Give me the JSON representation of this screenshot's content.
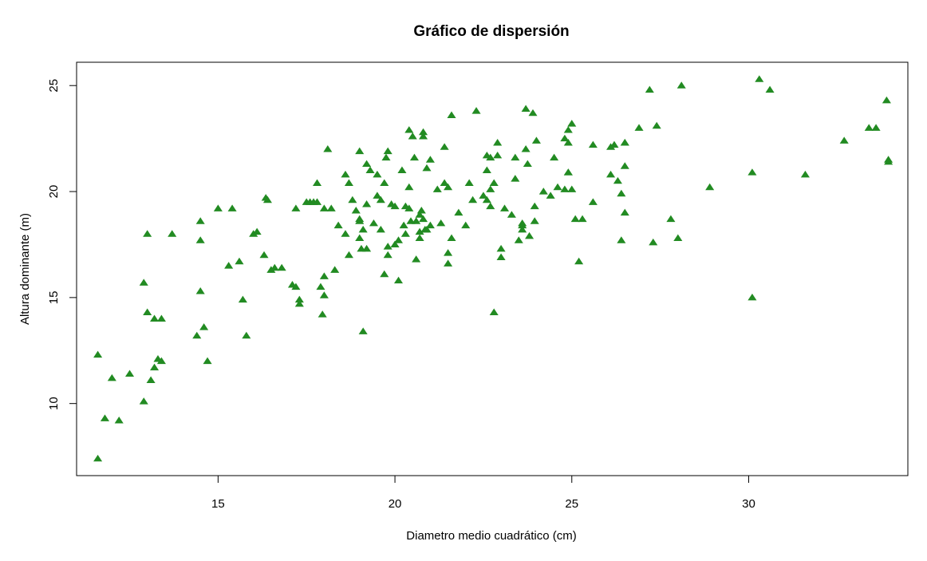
{
  "chart_data": {
    "type": "scatter",
    "title": "Gráfico de dispersión",
    "xlabel": "Diametro medio cuadrático (cm)",
    "ylabel": "Altura dominante (m)",
    "xlim": [
      11.0,
      34.5
    ],
    "ylim": [
      6.6,
      26.1
    ],
    "xticks": [
      15,
      20,
      25,
      30
    ],
    "yticks": [
      10,
      15,
      20,
      25
    ],
    "grid": false,
    "legend": "none",
    "marker": "filled-triangle",
    "color": "#228b22",
    "points": [
      [
        11.6,
        12.3
      ],
      [
        11.8,
        9.3
      ],
      [
        12.0,
        11.2
      ],
      [
        12.2,
        9.2
      ],
      [
        12.5,
        11.4
      ],
      [
        11.6,
        7.4
      ],
      [
        12.9,
        15.7
      ],
      [
        13.0,
        18.0
      ],
      [
        13.0,
        14.3
      ],
      [
        13.1,
        11.1
      ],
      [
        13.2,
        14.0
      ],
      [
        13.2,
        11.7
      ],
      [
        13.3,
        12.1
      ],
      [
        13.4,
        14.0
      ],
      [
        13.4,
        12.0
      ],
      [
        12.9,
        10.1
      ],
      [
        13.7,
        18.0
      ],
      [
        14.4,
        13.2
      ],
      [
        14.5,
        18.6
      ],
      [
        14.5,
        17.7
      ],
      [
        14.5,
        15.3
      ],
      [
        14.6,
        13.6
      ],
      [
        14.7,
        12.0
      ],
      [
        15.0,
        19.2
      ],
      [
        15.3,
        16.5
      ],
      [
        15.4,
        19.2
      ],
      [
        15.6,
        16.7
      ],
      [
        15.7,
        14.9
      ],
      [
        15.8,
        13.2
      ],
      [
        16.0,
        18.0
      ],
      [
        16.1,
        18.1
      ],
      [
        16.3,
        17.0
      ],
      [
        16.35,
        19.7
      ],
      [
        16.4,
        19.6
      ],
      [
        16.5,
        16.3
      ],
      [
        16.6,
        16.4
      ],
      [
        16.8,
        16.4
      ],
      [
        17.1,
        15.6
      ],
      [
        17.2,
        19.2
      ],
      [
        17.2,
        15.5
      ],
      [
        17.3,
        14.9
      ],
      [
        17.3,
        14.7
      ],
      [
        17.5,
        19.5
      ],
      [
        17.6,
        19.5
      ],
      [
        17.7,
        19.5
      ],
      [
        17.8,
        20.4
      ],
      [
        17.8,
        19.5
      ],
      [
        17.9,
        15.5
      ],
      [
        17.95,
        14.2
      ],
      [
        18.0,
        19.2
      ],
      [
        18.0,
        16.0
      ],
      [
        18.0,
        15.1
      ],
      [
        18.1,
        22.0
      ],
      [
        18.2,
        19.2
      ],
      [
        18.3,
        16.3
      ],
      [
        18.4,
        18.4
      ],
      [
        18.6,
        18.0
      ],
      [
        18.6,
        20.8
      ],
      [
        18.7,
        20.4
      ],
      [
        18.7,
        17.0
      ],
      [
        18.8,
        19.6
      ],
      [
        18.9,
        19.1
      ],
      [
        19.0,
        18.7
      ],
      [
        19.0,
        17.8
      ],
      [
        19.0,
        18.6
      ],
      [
        19.0,
        21.9
      ],
      [
        19.05,
        17.3
      ],
      [
        19.1,
        13.4
      ],
      [
        19.1,
        18.2
      ],
      [
        19.2,
        21.3
      ],
      [
        19.2,
        19.4
      ],
      [
        19.2,
        17.3
      ],
      [
        19.3,
        21.0
      ],
      [
        19.4,
        18.5
      ],
      [
        19.5,
        19.8
      ],
      [
        19.5,
        20.8
      ],
      [
        19.6,
        19.6
      ],
      [
        19.6,
        18.2
      ],
      [
        19.7,
        16.1
      ],
      [
        19.7,
        20.4
      ],
      [
        19.75,
        21.6
      ],
      [
        19.8,
        21.9
      ],
      [
        19.8,
        17.4
      ],
      [
        19.8,
        17.0
      ],
      [
        19.9,
        19.4
      ],
      [
        20.0,
        17.5
      ],
      [
        20.0,
        19.3
      ],
      [
        20.1,
        17.7
      ],
      [
        20.1,
        15.8
      ],
      [
        20.2,
        21.0
      ],
      [
        20.25,
        18.4
      ],
      [
        20.3,
        19.3
      ],
      [
        20.3,
        18.0
      ],
      [
        20.4,
        19.2
      ],
      [
        20.4,
        20.2
      ],
      [
        20.4,
        22.9
      ],
      [
        20.45,
        18.6
      ],
      [
        20.5,
        22.6
      ],
      [
        20.55,
        21.6
      ],
      [
        20.6,
        16.8
      ],
      [
        20.6,
        18.6
      ],
      [
        20.7,
        18.1
      ],
      [
        20.7,
        17.8
      ],
      [
        20.7,
        18.9
      ],
      [
        20.75,
        19.1
      ],
      [
        20.8,
        22.8
      ],
      [
        20.8,
        22.6
      ],
      [
        20.8,
        18.7
      ],
      [
        20.85,
        18.2
      ],
      [
        20.9,
        21.1
      ],
      [
        20.9,
        18.2
      ],
      [
        21.0,
        21.5
      ],
      [
        21.0,
        18.4
      ],
      [
        21.2,
        20.1
      ],
      [
        21.3,
        18.5
      ],
      [
        21.4,
        20.4
      ],
      [
        21.4,
        22.1
      ],
      [
        21.5,
        20.2
      ],
      [
        21.5,
        17.1
      ],
      [
        21.5,
        16.6
      ],
      [
        21.6,
        23.6
      ],
      [
        21.6,
        17.8
      ],
      [
        21.8,
        19.0
      ],
      [
        22.0,
        18.4
      ],
      [
        22.1,
        20.4
      ],
      [
        22.2,
        19.6
      ],
      [
        22.3,
        23.8
      ],
      [
        22.5,
        19.8
      ],
      [
        22.6,
        21.7
      ],
      [
        22.6,
        21.0
      ],
      [
        22.6,
        19.6
      ],
      [
        22.7,
        20.1
      ],
      [
        22.7,
        19.3
      ],
      [
        22.7,
        21.6
      ],
      [
        22.8,
        20.4
      ],
      [
        22.8,
        14.3
      ],
      [
        22.9,
        21.7
      ],
      [
        22.9,
        22.3
      ],
      [
        23.0,
        17.3
      ],
      [
        23.0,
        16.9
      ],
      [
        23.1,
        19.2
      ],
      [
        23.3,
        18.9
      ],
      [
        23.4,
        21.6
      ],
      [
        23.4,
        20.6
      ],
      [
        23.5,
        17.7
      ],
      [
        23.6,
        18.4
      ],
      [
        23.6,
        18.2
      ],
      [
        23.6,
        18.5
      ],
      [
        23.7,
        22.0
      ],
      [
        23.7,
        23.9
      ],
      [
        23.75,
        21.3
      ],
      [
        23.8,
        17.9
      ],
      [
        23.9,
        23.7
      ],
      [
        23.95,
        18.6
      ],
      [
        23.95,
        19.3
      ],
      [
        24.0,
        22.4
      ],
      [
        24.2,
        20.0
      ],
      [
        24.4,
        19.8
      ],
      [
        24.5,
        21.6
      ],
      [
        24.6,
        20.2
      ],
      [
        24.8,
        20.1
      ],
      [
        24.8,
        22.5
      ],
      [
        24.9,
        22.3
      ],
      [
        24.9,
        22.9
      ],
      [
        24.9,
        20.9
      ],
      [
        24.9,
        20.9
      ],
      [
        25.0,
        23.2
      ],
      [
        25.0,
        20.1
      ],
      [
        25.1,
        18.7
      ],
      [
        25.2,
        16.7
      ],
      [
        25.3,
        18.7
      ],
      [
        25.6,
        22.2
      ],
      [
        25.6,
        19.5
      ],
      [
        26.1,
        22.1
      ],
      [
        26.1,
        20.8
      ],
      [
        26.2,
        22.2
      ],
      [
        26.3,
        20.5
      ],
      [
        26.4,
        19.9
      ],
      [
        26.4,
        17.7
      ],
      [
        26.5,
        22.3
      ],
      [
        26.5,
        22.3
      ],
      [
        26.5,
        21.2
      ],
      [
        26.5,
        19.0
      ],
      [
        26.9,
        23.0
      ],
      [
        27.2,
        24.8
      ],
      [
        27.3,
        17.6
      ],
      [
        27.4,
        23.1
      ],
      [
        27.8,
        18.7
      ],
      [
        28.0,
        17.8
      ],
      [
        28.1,
        25.0
      ],
      [
        28.9,
        20.2
      ],
      [
        30.1,
        20.9
      ],
      [
        30.1,
        15.0
      ],
      [
        30.3,
        25.3
      ],
      [
        30.6,
        24.8
      ],
      [
        31.6,
        20.8
      ],
      [
        32.7,
        22.4
      ],
      [
        33.4,
        23.0
      ],
      [
        33.6,
        23.0
      ],
      [
        33.9,
        24.3
      ],
      [
        33.95,
        21.5
      ],
      [
        33.95,
        21.4
      ]
    ]
  }
}
